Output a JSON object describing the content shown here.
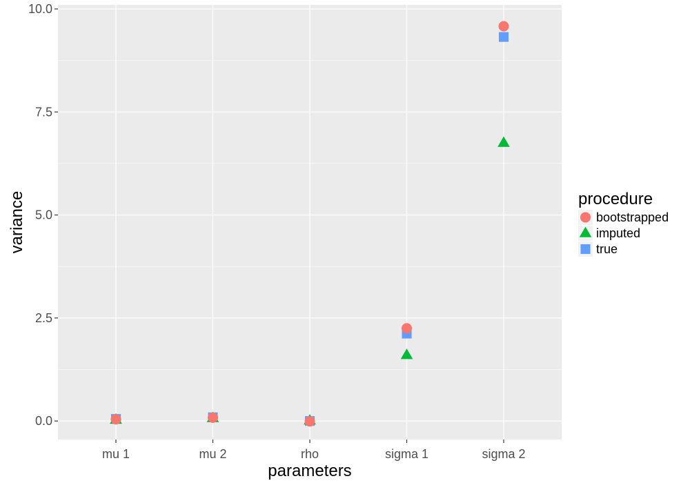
{
  "chart_data": {
    "type": "scatter",
    "categories": [
      "mu 1",
      "mu 2",
      "rho",
      "sigma 1",
      "sigma 2"
    ],
    "xlabel": "parameters",
    "ylabel": "variance",
    "ylim": [
      -0.45,
      10.1
    ],
    "yticks": [
      0.0,
      2.5,
      5.0,
      7.5,
      10.0
    ],
    "ytick_labels": [
      "0.0",
      "2.5",
      "5.0",
      "7.5",
      "10.0"
    ],
    "grid": true,
    "legend": {
      "title": "procedure",
      "placement": "right"
    },
    "series": [
      {
        "name": "bootstrapped",
        "shape": "circle",
        "color": "#F8766D",
        "values": [
          0.04,
          0.08,
          -0.01,
          2.25,
          9.58
        ]
      },
      {
        "name": "imputed",
        "shape": "triangle",
        "color": "#00BA38",
        "values": [
          0.03,
          0.07,
          0.01,
          1.6,
          6.75
        ]
      },
      {
        "name": "true",
        "shape": "square",
        "color": "#619CFF",
        "values": [
          0.05,
          0.09,
          0.0,
          2.12,
          9.32
        ]
      }
    ],
    "colors": {
      "panel": "#EBEBEB",
      "grid_major": "#FFFFFF",
      "grid_minor": "#F5F5F5"
    }
  }
}
